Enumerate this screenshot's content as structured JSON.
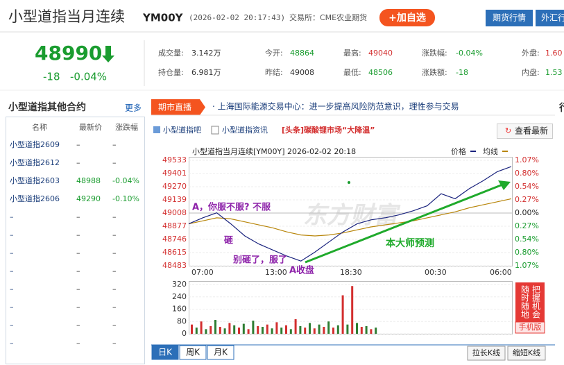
{
  "header": {
    "title": "小型道指当月连续",
    "code": "YM00Y",
    "time": "(2026-02-02 20:17:43)",
    "exchange": "交易所：CME农业期货",
    "add_button": "+加自选",
    "nav": [
      "期货行情",
      "外汇行"
    ]
  },
  "quote": {
    "price": "48990",
    "change": "-18",
    "change_pct": "-0.04%",
    "stats": [
      [
        "成交量:",
        "3.142万"
      ],
      [
        "持仓量:",
        "6.981万"
      ],
      [
        "今开:",
        "48864"
      ],
      [
        "昨结:",
        "49008"
      ],
      [
        "最高:",
        "49040"
      ],
      [
        "最低:",
        "48506"
      ],
      [
        "涨跌幅:",
        "-0.04%"
      ],
      [
        "涨跌额:",
        "-18"
      ],
      [
        "外盘:",
        "1.60"
      ],
      [
        "内盘:",
        "1.53"
      ]
    ]
  },
  "contracts": {
    "title": "小型道指其他合约",
    "more": "更多",
    "columns": [
      "名称",
      "最新价",
      "涨跌幅"
    ],
    "rows": [
      [
        "小型道指2609",
        "–",
        "–"
      ],
      [
        "小型道指2612",
        "–",
        "–"
      ],
      [
        "小型道指2603",
        "48988",
        "-0.04%"
      ],
      [
        "小型道指2606",
        "49290",
        "-0.10%"
      ],
      [
        "–",
        "–",
        "–"
      ],
      [
        "–",
        "–",
        "–"
      ],
      [
        "–",
        "–",
        "–"
      ],
      [
        "–",
        "–",
        "–"
      ],
      [
        "–",
        "–",
        "–"
      ],
      [
        "–",
        "–",
        "–"
      ],
      [
        "–",
        "–",
        "–"
      ],
      [
        "–",
        "–",
        "–"
      ]
    ]
  },
  "news": {
    "tab": "期市直播",
    "text": "· 上海国际能源交易中心：进一步提高风险防范意识，理性参与交易"
  },
  "tabs": {
    "links": [
      "小型道指吧",
      "小型道指资讯"
    ],
    "headline": "[头条]碳酸锂市场“大降温”",
    "refresh": "查看最新"
  },
  "chart": {
    "title": "小型道指当月连续[YM00Y] 2026-02-02 20:18",
    "legend": [
      "价格",
      "均线"
    ],
    "ylim": [
      48483,
      49533
    ],
    "yticks": [
      49533,
      49401,
      49270,
      49139,
      49008,
      48877,
      48746,
      48615,
      48483
    ],
    "right_ticks": [
      "1.07%",
      "0.80%",
      "0.54%",
      "0.27%",
      "0.00%",
      "0.27%",
      "0.54%",
      "0.80%",
      "1.07%"
    ],
    "times": [
      "07:00",
      "13:00",
      "18:30",
      "00:30",
      "06:00"
    ],
    "annotations": [
      "A，你服不服? 不服",
      "砸",
      "别砸了，服了",
      "A收盘",
      "本大师预测"
    ],
    "watermark": "东方财富",
    "price": {
      "name": "价格",
      "color": "#1a237e",
      "values": [
        48900,
        48960,
        49010,
        48900,
        48780,
        48700,
        48640,
        48580,
        48530,
        48620,
        48720,
        48820,
        48900,
        48940,
        48960,
        48990,
        49030,
        49080,
        49200,
        49150,
        49250,
        49330,
        49420,
        49470
      ]
    },
    "average": {
      "name": "均线",
      "color": "#b8860b",
      "values": [
        48900,
        48930,
        48960,
        48950,
        48920,
        48890,
        48860,
        48820,
        48790,
        48780,
        48790,
        48810,
        48840,
        48870,
        48890,
        48910,
        48930,
        48960,
        48990,
        49020,
        49060,
        49090,
        49120,
        49150
      ]
    },
    "volume": {
      "ylim": [
        0,
        320
      ],
      "yticks": [
        320,
        240,
        160,
        80,
        0
      ],
      "colors": [
        "#d32f2f",
        "#2e7d32"
      ],
      "values": [
        60,
        40,
        80,
        30,
        50,
        90,
        45,
        35,
        70,
        55,
        40,
        65,
        30,
        85,
        50,
        45,
        60,
        35,
        75,
        40,
        55,
        30,
        95,
        50,
        40,
        70,
        35,
        60,
        45,
        80,
        40,
        55,
        250,
        60,
        310,
        70,
        45,
        50,
        30,
        40
      ]
    }
  },
  "ad": {
    "left": "随时随地",
    "right": "把握机会",
    "bottom": "手机版"
  },
  "bottom": {
    "periods": [
      "日K",
      "周K",
      "月K"
    ],
    "buttons": [
      "拉长K线",
      "缩短K线"
    ]
  }
}
